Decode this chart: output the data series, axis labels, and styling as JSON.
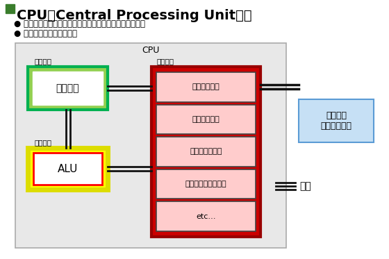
{
  "title_prefix": "CPU（Central Processing Unit　）",
  "title_square_color": "#3a7d2c",
  "bullet1": "● 入力装置や記憶装置からデータを受け取り、演算を行う",
  "bullet2": "● すべての装置を制御する",
  "cpu_label": "CPU",
  "cpu_box_facecolor": "#e8e8e8",
  "cpu_box_edgecolor": "#aaaaaa",
  "seigyo_label": "制御装置",
  "decoder_label": "デコーダ",
  "decoder_outer_fill": "#92d050",
  "decoder_outer_edge": "#00b050",
  "decoder_inner_fill": "#ffffff",
  "decoder_inner_edge": "#ffffff",
  "enzan_label": "演算装置",
  "alu_label": "ALU",
  "alu_outer_fill": "#ffff00",
  "alu_outer_edge": "#dddd00",
  "alu_inner_fill": "#ffffff",
  "alu_inner_edge": "#ff0000",
  "register_label": "レジスタ",
  "register_outer_fill": "#cc0000",
  "register_outer_edge": "#990000",
  "register_items": [
    "命令レジスタ",
    "汎用レジスタ",
    "フラグレジスタ",
    "プログラムカウンタ",
    "etc…"
  ],
  "register_item_fill": "#ffcccc",
  "register_item_edge": "#444444",
  "clock_label": "クロック\nジェネレータ",
  "clock_fill": "#c6e0f5",
  "clock_edge": "#5b9bd5",
  "bus_label": "バス",
  "line_color": "#111111",
  "bg_color": "#ffffff"
}
